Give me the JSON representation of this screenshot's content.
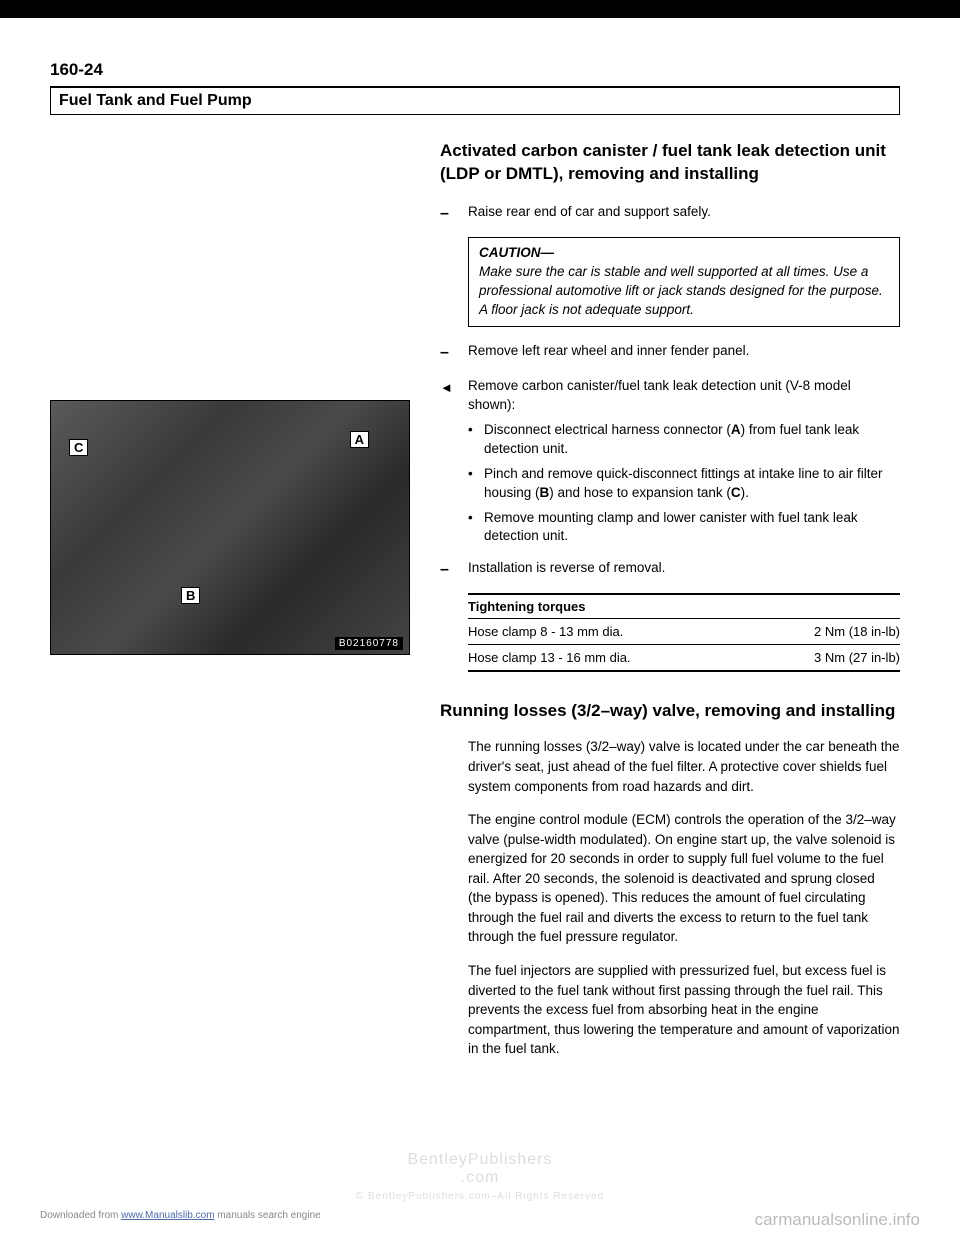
{
  "page_number": "160-24",
  "section_header": "Fuel Tank and Fuel Pump",
  "figure": {
    "labels": {
      "a": "A",
      "b": "B",
      "c": "C"
    },
    "ref": "B02160778"
  },
  "proc_title": "Activated carbon canister / fuel tank leak detection unit (LDP or DMTL), removing and installing",
  "step1": "Raise rear end of car and support safely.",
  "caution": {
    "label": "CAUTION",
    "text": "Make sure the car is stable and well supported at all times. Use a professional automotive lift or jack stands designed for the purpose. A floor jack is not adequate support."
  },
  "step2": "Remove left rear wheel and inner fender panel.",
  "step3": {
    "intro": "Remove carbon canister/fuel tank leak detection unit (V-8 model shown):",
    "b1_pre": "Disconnect electrical harness connector (",
    "b1_ref": "A",
    "b1_post": ") from fuel tank leak detection unit.",
    "b2_pre": "Pinch and remove quick-disconnect fittings at intake line to air filter housing (",
    "b2_ref1": "B",
    "b2_mid": ") and hose to expansion tank (",
    "b2_ref2": "C",
    "b2_post": ").",
    "b3": "Remove mounting clamp and lower canister with fuel tank leak detection unit."
  },
  "step4": "Installation is reverse of removal.",
  "torques": {
    "header": "Tightening torques",
    "rows": [
      {
        "label": "Hose clamp 8 - 13 mm dia.",
        "value": "2 Nm (18 in-lb)"
      },
      {
        "label": "Hose clamp 13 - 16 mm dia.",
        "value": "3 Nm (27 in-lb)"
      }
    ]
  },
  "sub_title": "Running losses (3/2–way) valve, removing and installing",
  "para1": "The running losses (3/2–way) valve is located under the car beneath the driver's seat, just ahead of the fuel filter. A protective cover shields fuel system components from road hazards and dirt.",
  "para2": "The engine control module (ECM) controls the operation of the 3/2–way valve (pulse-width modulated). On engine start up, the valve solenoid is energized for 20 seconds in order to supply full fuel volume to the fuel rail. After 20 seconds, the solenoid is deactivated and sprung closed (the bypass is opened). This reduces the amount of fuel circulating through the fuel rail and diverts the excess to return to the fuel tank through the fuel pressure regulator.",
  "para3": "The fuel injectors are supplied with pressurized fuel, but excess fuel is diverted to the fuel tank without first passing through the fuel rail. This prevents the excess fuel from absorbing heat in the engine compartment, thus lowering the temperature and amount of vaporization in the fuel tank.",
  "watermark": {
    "center1": "BentleyPublishers",
    "center2": ".com",
    "center3": "© BentleyPublishers.com–All Rights Reserved"
  },
  "footer": {
    "left_pre": "Downloaded from ",
    "left_link": "www.Manualslib.com",
    "left_post": " manuals search engine",
    "right": "carmanualsonline.info"
  }
}
